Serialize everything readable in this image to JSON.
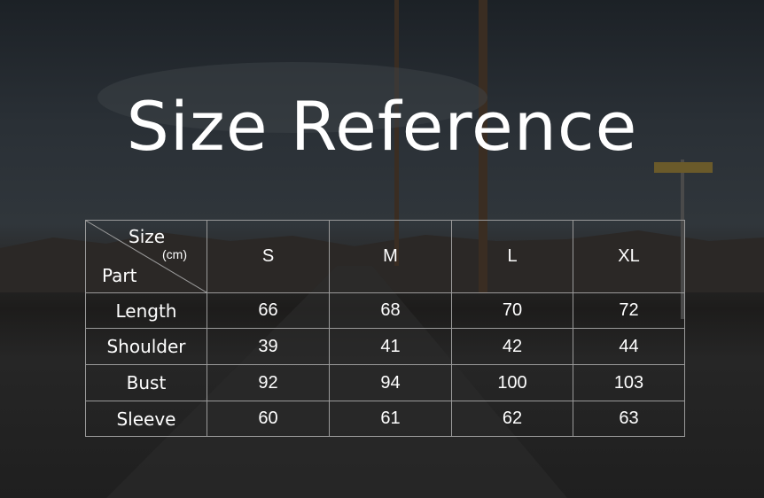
{
  "title": "Size Reference",
  "table": {
    "corner": {
      "size_label": "Size",
      "unit_label": "(cm)",
      "part_label": "Part"
    },
    "columns": [
      "S",
      "M",
      "L",
      "XL"
    ],
    "rows": [
      {
        "part": "Length",
        "values": [
          "66",
          "68",
          "70",
          "72"
        ]
      },
      {
        "part": "Shoulder",
        "values": [
          "39",
          "41",
          "42",
          "44"
        ]
      },
      {
        "part": "Bust",
        "values": [
          "92",
          "94",
          "100",
          "103"
        ]
      },
      {
        "part": "Sleeve",
        "values": [
          "60",
          "61",
          "62",
          "63"
        ]
      }
    ]
  }
}
